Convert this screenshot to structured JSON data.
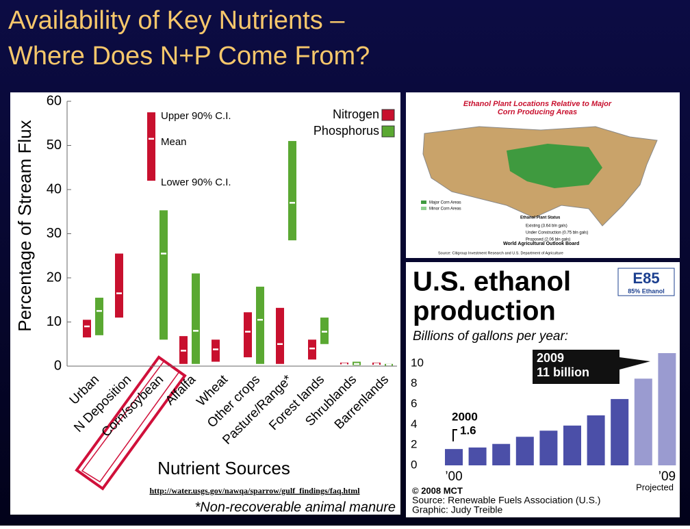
{
  "slide_title": [
    "Availability of Key Nutrients –",
    "Where Does N+P Come From?"
  ],
  "chart_data": [
    {
      "type": "range",
      "categories": [
        "Urban",
        "N Deposition",
        "Corn/soybean",
        "Alfalfa",
        "Wheat",
        "Other crops",
        "Pasture/Range*",
        "Forest lands",
        "Shrublands",
        "Barrenlands"
      ],
      "series": [
        {
          "name": "Nitrogen",
          "color": "#c8102e",
          "low": [
            6.5,
            11,
            42,
            0.5,
            1,
            2,
            0.5,
            1.5,
            0.4,
            0.3
          ],
          "mean": [
            9,
            16.5,
            51.5,
            3.5,
            3.8,
            7.8,
            5,
            4,
            0.5,
            0.5
          ],
          "high": [
            10.5,
            25.5,
            57.5,
            6.8,
            6,
            12.2,
            13.2,
            6,
            0.8,
            0.8
          ]
        },
        {
          "name": "Phosphorus",
          "color": "#5aa832",
          "low": [
            7,
            null,
            6,
            0.5,
            null,
            0.5,
            28.5,
            5,
            0.2,
            0.1
          ],
          "mean": [
            12.5,
            null,
            25.5,
            8,
            null,
            10.5,
            37,
            7.8,
            0.5,
            0.3
          ],
          "high": [
            15.5,
            null,
            35.3,
            21,
            null,
            18,
            51,
            11,
            1,
            0.5
          ]
        }
      ],
      "ylim": [
        0,
        60
      ],
      "yticks": [
        0,
        10,
        20,
        30,
        40,
        50,
        60
      ],
      "ylabel": "Percentage of Stream Flux",
      "xlabel": "Nutrient Sources",
      "annotations": [
        "Upper 90% C.I.",
        "Mean",
        "Lower 90% C.I."
      ],
      "footnote": "*Non-recoverable animal manure",
      "link": "http://water.usgs.gov/nawqa/sparrow/gulf_findings/faq.html"
    },
    {
      "type": "bar",
      "title": [
        "U.S. ethanol",
        "production"
      ],
      "subtitle": "Billions of gallons per year:",
      "categories": [
        "’00",
        null,
        null,
        null,
        null,
        null,
        null,
        null,
        null,
        "’09"
      ],
      "values": [
        1.6,
        1.75,
        2.1,
        2.8,
        3.4,
        3.9,
        4.9,
        6.5,
        8.5,
        11
      ],
      "colors": [
        "#4b4fa8",
        "#4b4fa8",
        "#4b4fa8",
        "#4b4fa8",
        "#4b4fa8",
        "#4b4fa8",
        "#4b4fa8",
        "#4b4fa8",
        "#9a9bd0",
        "#9a9bd0"
      ],
      "ylim": [
        0,
        11
      ],
      "yticks": [
        0,
        2,
        4,
        6,
        8,
        10
      ],
      "annotations": [
        "2000",
        "1.6",
        "2009",
        "11 billion",
        "Projected"
      ],
      "logo": [
        "E85",
        "85% Ethanol"
      ],
      "credits": [
        "© 2008 MCT",
        "Source: Renewable Fuels Association (U.S.)",
        "Graphic: Judy Treible"
      ]
    }
  ],
  "map": {
    "title": [
      "Ethanol Plant Locations Relative to Major",
      "Corn Producing Areas"
    ],
    "legend": [
      "Major Corn Areas",
      "Minor Corn Areas",
      "Ethanol Plant Status",
      "Existing (3.64 bln gals)",
      "Under Construction (0.75 bln gals)",
      "Proposed (2.06 bln gals)"
    ],
    "credit": "World Agricultural Outlook Board",
    "source": "Source: Citigroup Investment Research and U.S. Department of Agriculture"
  }
}
